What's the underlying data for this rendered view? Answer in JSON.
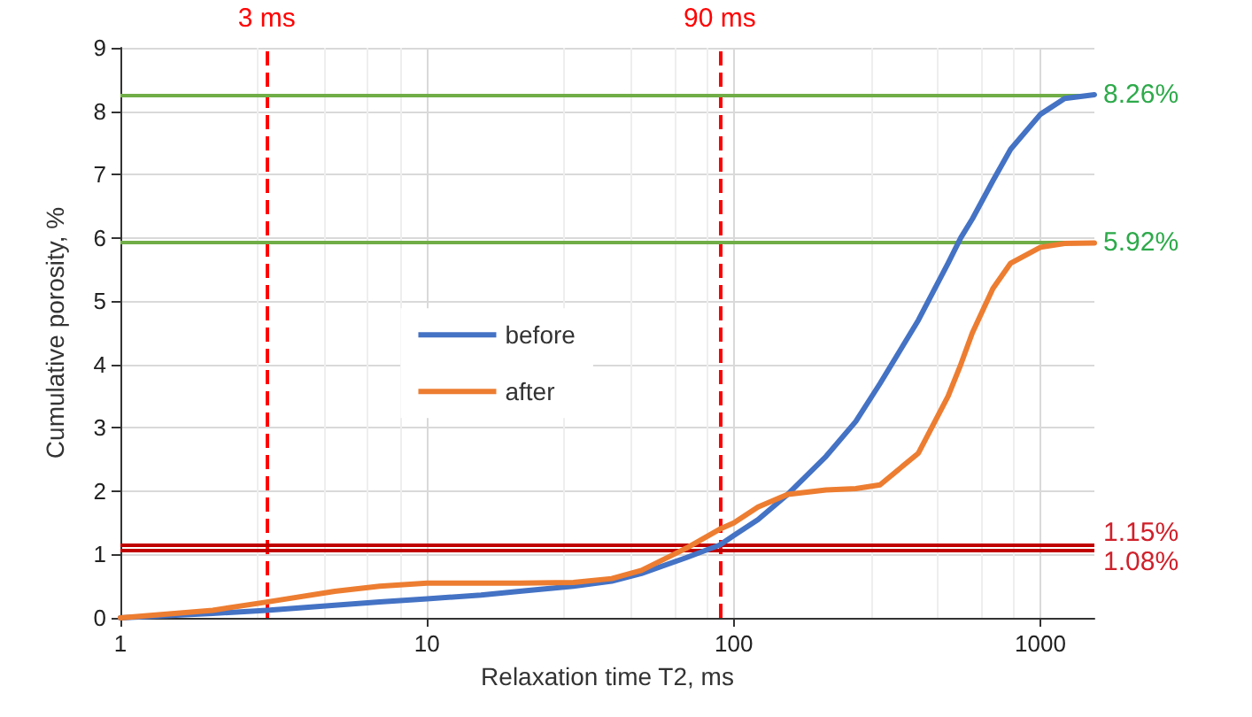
{
  "chart_data": {
    "type": "line",
    "xlabel": "Relaxation time T2, ms",
    "ylabel": "Cumulative porosity, %",
    "log": "x",
    "xlim": [
      1,
      1500
    ],
    "xticks": [
      1,
      10,
      100,
      1000
    ],
    "ylim": [
      0,
      9
    ],
    "yticks": [
      0,
      1,
      2,
      3,
      4,
      5,
      6,
      7,
      8,
      9
    ],
    "grid": true,
    "legend": "center",
    "marker": "none",
    "line_style": "solid",
    "x": [
      1,
      2,
      3,
      5,
      7,
      10,
      15,
      20,
      30,
      40,
      50,
      70,
      90,
      100,
      120,
      150,
      200,
      250,
      300,
      400,
      500,
      550,
      600,
      700,
      800,
      1000,
      1200,
      1500
    ],
    "series": [
      {
        "name": "before",
        "color": "#4472c4",
        "values": [
          0,
          0.07,
          0.12,
          0.2,
          0.25,
          0.3,
          0.36,
          0.42,
          0.5,
          0.58,
          0.7,
          0.95,
          1.15,
          1.3,
          1.55,
          1.95,
          2.55,
          3.1,
          3.7,
          4.7,
          5.6,
          6.0,
          6.3,
          6.9,
          7.4,
          7.95,
          8.2,
          8.26
        ]
      },
      {
        "name": "after",
        "color": "#ed7d31",
        "values": [
          0,
          0.12,
          0.25,
          0.42,
          0.5,
          0.55,
          0.55,
          0.55,
          0.56,
          0.62,
          0.75,
          1.1,
          1.4,
          1.5,
          1.75,
          1.95,
          2.02,
          2.04,
          2.1,
          2.6,
          3.5,
          4.0,
          4.5,
          5.2,
          5.6,
          5.85,
          5.91,
          5.92
        ]
      }
    ],
    "ref_lines": [
      {
        "axis": "x",
        "value": 3,
        "label": "3 ms",
        "color": "#ff0000",
        "line_style": "dashed"
      },
      {
        "axis": "x",
        "value": 90,
        "label": "90 ms",
        "color": "#ff0000",
        "line_style": "dashed"
      },
      {
        "axis": "y",
        "value": 8.26,
        "label": "8.26%",
        "color": "#70ad47",
        "line_style": "solid"
      },
      {
        "axis": "y",
        "value": 5.92,
        "label": "5.92%",
        "color": "#70ad47",
        "line_style": "solid"
      },
      {
        "axis": "y",
        "value": 1.15,
        "label": "1.15%",
        "color": "#c00000",
        "line_style": "solid"
      },
      {
        "axis": "y",
        "value": 1.08,
        "label": "1.08%",
        "color": "#c00000",
        "line_style": "solid"
      }
    ]
  }
}
